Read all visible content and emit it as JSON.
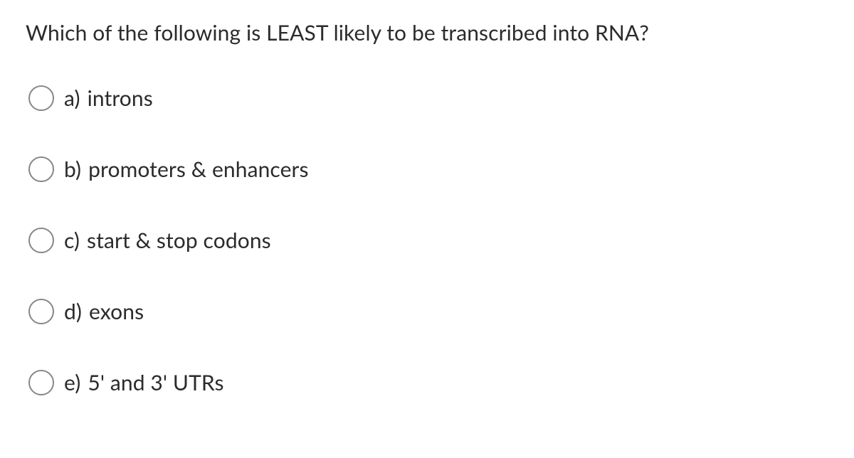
{
  "question": {
    "text": "Which of the following is LEAST likely to be transcribed into RNA?"
  },
  "options": [
    {
      "letter": "a)",
      "text": "introns"
    },
    {
      "letter": "b)",
      "text": "promoters & enhancers"
    },
    {
      "letter": "c)",
      "text": "start & stop codons"
    },
    {
      "letter": "d)",
      "text": "exons"
    },
    {
      "letter": "e)",
      "text": "5' and 3' UTRs"
    }
  ]
}
